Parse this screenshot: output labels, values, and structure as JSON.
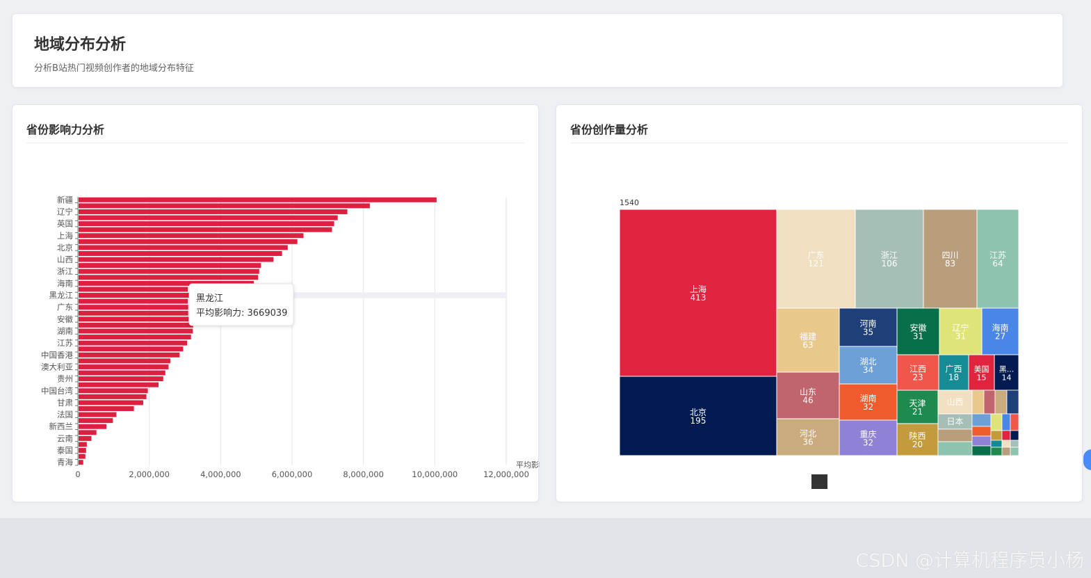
{
  "header": {
    "title": "地域分布分析",
    "subtitle": "分析B站热门视频创作者的地域分布特征"
  },
  "left_panel": {
    "title": "省份影响力分析"
  },
  "right_panel": {
    "title": "省份创作量分析"
  },
  "watermark": "CSDN @计算机程序员小杨",
  "chart_data": [
    {
      "type": "bar",
      "orientation": "horizontal",
      "x_tick_labels": [
        "0",
        "2,000,000",
        "4,000,000",
        "6,000,000",
        "8,000,000",
        "10,000,000",
        "12,000,000"
      ],
      "xlim": [
        0,
        12000000
      ],
      "xlabel": "平均影响力",
      "grid": true,
      "color": "#dc2040",
      "categories": [
        "新疆",
        "",
        "辽宁",
        "",
        "英国",
        "",
        "上海",
        "",
        "北京",
        "",
        "山西",
        "",
        "浙江",
        "",
        "海南",
        "",
        "黑龙江",
        "",
        "广东",
        "",
        "安徽",
        "",
        "湖南",
        "",
        "江苏",
        "",
        "中国香港",
        "",
        "澳大利亚",
        "",
        "贵州",
        "",
        "中国台湾",
        "",
        "甘肃",
        "",
        "法国",
        "",
        "新西兰",
        "",
        "云南",
        "",
        "泰国",
        "",
        "青海"
      ],
      "values": [
        10050000,
        8180000,
        7550000,
        7280000,
        7180000,
        7120000,
        6320000,
        6150000,
        5880000,
        5720000,
        5480000,
        5130000,
        5080000,
        5050000,
        4930000,
        3080000,
        3669039,
        3080000,
        3090000,
        3090000,
        3100000,
        3230000,
        3220000,
        3170000,
        3060000,
        2950000,
        2850000,
        2590000,
        2540000,
        2450000,
        2390000,
        2260000,
        1960000,
        1920000,
        1830000,
        1570000,
        1080000,
        980000,
        800000,
        520000,
        380000,
        250000,
        230000,
        210000,
        150000
      ],
      "tooltip": {
        "category": "黑龙江",
        "label": "平均影响力: 3669039"
      }
    },
    {
      "type": "treemap",
      "root_label": "1540",
      "items": [
        {
          "name": "上海",
          "value": 413,
          "color": "#e0243f"
        },
        {
          "name": "北京",
          "value": 195,
          "color": "#021a52"
        },
        {
          "name": "广东",
          "value": 121,
          "color": "#f0dfc0"
        },
        {
          "name": "浙江",
          "value": 106,
          "color": "#a6bfb6"
        },
        {
          "name": "四川",
          "value": 83,
          "color": "#b99e7c"
        },
        {
          "name": "江苏",
          "value": 64,
          "color": "#8ec4ae"
        },
        {
          "name": "福建",
          "value": 63,
          "color": "#e8c98b"
        },
        {
          "name": "山东",
          "value": 46,
          "color": "#c0646e"
        },
        {
          "name": "河北",
          "value": 36,
          "color": "#c9ab7e"
        },
        {
          "name": "河南",
          "value": 35,
          "color": "#1f3f7a"
        },
        {
          "name": "湖北",
          "value": 34,
          "color": "#6b9fd6"
        },
        {
          "name": "湖南",
          "value": 32,
          "color": "#f05a2c"
        },
        {
          "name": "重庆",
          "value": 32,
          "color": "#8f82d6"
        },
        {
          "name": "安徽",
          "value": 31,
          "color": "#07704a"
        },
        {
          "name": "辽宁",
          "value": 31,
          "color": "#dfe47a"
        },
        {
          "name": "海南",
          "value": 27,
          "color": "#4a86e8"
        },
        {
          "name": "江西",
          "value": 23,
          "color": "#f0574a"
        },
        {
          "name": "天津",
          "value": 21,
          "color": "#1f8a4f"
        },
        {
          "name": "陕西",
          "value": 20,
          "color": "#c39b3c"
        },
        {
          "name": "广西",
          "value": 18,
          "color": "#158b96"
        },
        {
          "name": "美国",
          "value": 15,
          "color": "#e0243f"
        },
        {
          "name": "黑...",
          "value": 14,
          "color": "#021a52"
        },
        {
          "name": "山西",
          "value": null,
          "color": "#f0dfc0"
        },
        {
          "name": "日本",
          "value": null,
          "color": "#a6bfb6"
        }
      ]
    }
  ]
}
